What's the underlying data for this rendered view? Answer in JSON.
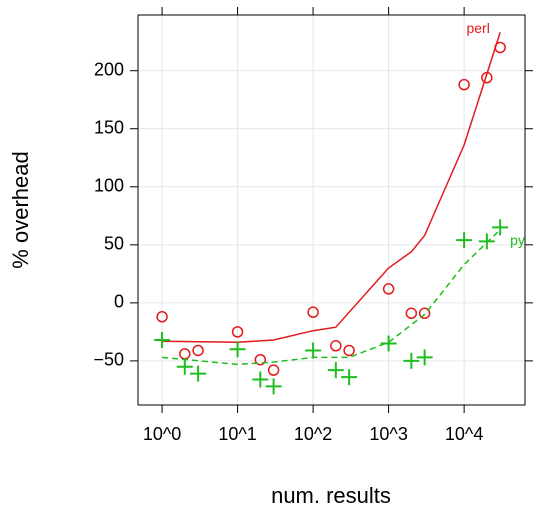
{
  "chart_data": {
    "type": "scatter",
    "xlabel": "num. results",
    "ylabel": "% overhead",
    "xscale": "log",
    "grid": true,
    "xlim": [
      0.48,
      64000
    ],
    "ylim": [
      -88,
      248
    ],
    "xticks": [
      {
        "value": 1,
        "label": "10^0"
      },
      {
        "value": 10,
        "label": "10^1"
      },
      {
        "value": 100,
        "label": "10^2"
      },
      {
        "value": 1000,
        "label": "10^3"
      },
      {
        "value": 10000,
        "label": "10^4"
      }
    ],
    "yticks": [
      -50,
      0,
      50,
      100,
      150,
      200
    ],
    "series": [
      {
        "name": "perl",
        "color": "#e31a1c",
        "marker": "circle",
        "x": [
          1,
          2,
          3,
          10,
          20,
          30,
          100,
          200,
          300,
          1000,
          2000,
          3000,
          10000,
          20000,
          30000
        ],
        "values": [
          -12,
          -44,
          -41,
          -25,
          -49,
          -58,
          -8,
          -37,
          -41,
          12,
          -9,
          -9,
          188,
          194,
          220
        ],
        "smooth": {
          "dash": false,
          "x": [
            1,
            10,
            30,
            100,
            200,
            1000,
            2000,
            3000,
            10000,
            30000
          ],
          "values": [
            -33,
            -34,
            -32,
            -24,
            -21,
            30,
            44,
            58,
            136,
            233
          ]
        }
      },
      {
        "name": "pyt",
        "color": "#1ebd1e",
        "marker": "plus",
        "x": [
          1,
          2,
          3,
          10,
          20,
          30,
          100,
          200,
          300,
          1000,
          2000,
          3000,
          10000,
          20000,
          30000
        ],
        "values": [
          -32,
          -55,
          -61,
          -40,
          -66,
          -72,
          -41,
          -58,
          -64,
          -35,
          -50,
          -47,
          54,
          53,
          65
        ],
        "smooth": {
          "dash": true,
          "x": [
            1,
            10,
            30,
            100,
            300,
            1000,
            3000,
            10000,
            30000
          ],
          "values": [
            -47,
            -53,
            -51,
            -47,
            -47,
            -34,
            -10,
            33,
            63
          ]
        }
      }
    ]
  }
}
